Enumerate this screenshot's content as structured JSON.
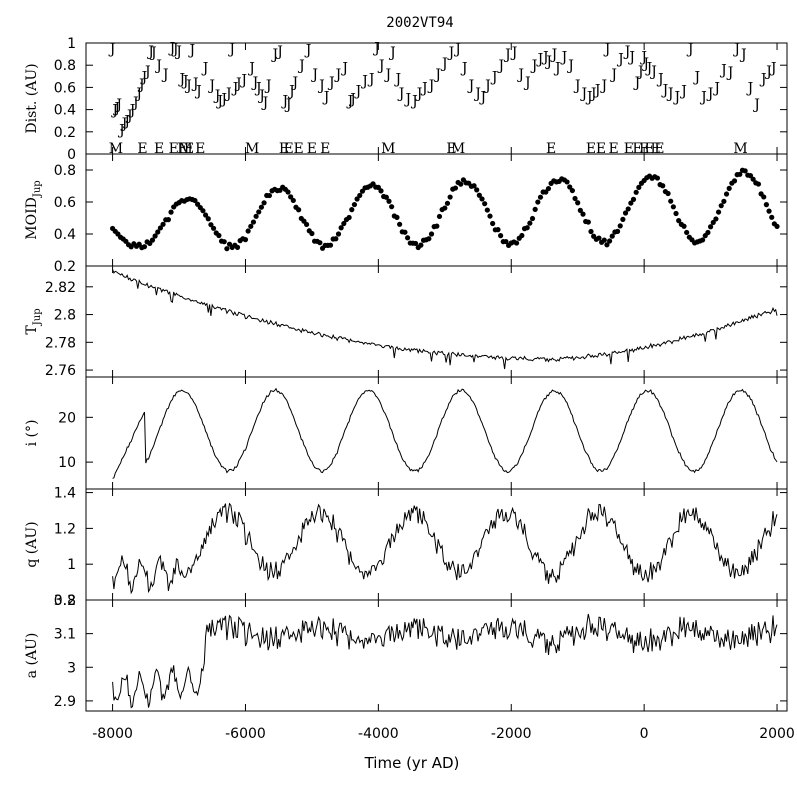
{
  "chart_data": {
    "type": "line",
    "title": "2002VT94",
    "xlabel": "Time (yr AD)",
    "xlim": [
      -8400,
      2150
    ],
    "xticks": [
      "-8000",
      "-6000",
      "-4000",
      "-2000",
      "0",
      "2000"
    ],
    "xtick_values": [
      -8000,
      -6000,
      -4000,
      -2000,
      0,
      2000
    ],
    "panels": [
      {
        "id": "dist",
        "type": "scatter",
        "ylabel": "Dist. (AU)",
        "ylim": [
          0,
          1
        ],
        "yticks": [
          "0",
          "0.2",
          "0.4",
          "0.6",
          "0.8",
          "1"
        ],
        "ytick_values": [
          0,
          0.2,
          0.4,
          0.6,
          0.8,
          1
        ],
        "series": [
          {
            "marker": "J",
            "points": [
              [
                -8000,
                0.95
              ],
              [
                -7960,
                0.4
              ],
              [
                -7930,
                0.42
              ],
              [
                -7900,
                0.45
              ],
              [
                -7860,
                0.22
              ],
              [
                -7820,
                0.28
              ],
              [
                -7780,
                0.3
              ],
              [
                -7740,
                0.35
              ],
              [
                -7700,
                0.4
              ],
              [
                -7650,
                0.47
              ],
              [
                -7600,
                0.55
              ],
              [
                -7560,
                0.63
              ],
              [
                -7520,
                0.7
              ],
              [
                -7470,
                0.75
              ],
              [
                -7420,
                0.93
              ],
              [
                -7380,
                0.92
              ],
              [
                -7300,
                0.8
              ],
              [
                -7200,
                0.72
              ],
              [
                -7100,
                0.96
              ],
              [
                -7050,
                0.95
              ],
              [
                -7000,
                0.93
              ],
              [
                -6950,
                0.68
              ],
              [
                -6900,
                0.66
              ],
              [
                -6850,
                0.62
              ],
              [
                -6800,
                0.94
              ],
              [
                -6750,
                0.64
              ],
              [
                -6700,
                0.57
              ],
              [
                -6600,
                0.78
              ],
              [
                -6500,
                0.62
              ],
              [
                -6420,
                0.53
              ],
              [
                -6380,
                0.48
              ],
              [
                -6320,
                0.5
              ],
              [
                -6250,
                0.55
              ],
              [
                -6200,
                0.95
              ],
              [
                -6150,
                0.6
              ],
              [
                -6100,
                0.64
              ],
              [
                -6020,
                0.67
              ],
              [
                -5900,
                0.78
              ],
              [
                -5850,
                0.65
              ],
              [
                -5800,
                0.6
              ],
              [
                -5750,
                0.53
              ],
              [
                -5700,
                0.47
              ],
              [
                -5650,
                0.62
              ],
              [
                -5550,
                0.9
              ],
              [
                -5480,
                0.93
              ],
              [
                -5400,
                0.48
              ],
              [
                -5350,
                0.45
              ],
              [
                -5300,
                0.57
              ],
              [
                -5250,
                0.65
              ],
              [
                -5150,
                0.8
              ],
              [
                -5050,
                0.94
              ],
              [
                -4950,
                0.72
              ],
              [
                -4850,
                0.62
              ],
              [
                -4780,
                0.52
              ],
              [
                -4700,
                0.65
              ],
              [
                -4600,
                0.72
              ],
              [
                -4500,
                0.78
              ],
              [
                -4420,
                0.48
              ],
              [
                -4380,
                0.5
              ],
              [
                -4300,
                0.57
              ],
              [
                -4200,
                0.66
              ],
              [
                -4100,
                0.68
              ],
              [
                -4020,
                0.96
              ],
              [
                -3950,
                0.8
              ],
              [
                -3850,
                0.72
              ],
              [
                -3780,
                0.92
              ],
              [
                -3700,
                0.68
              ],
              [
                -3650,
                0.55
              ],
              [
                -3550,
                0.5
              ],
              [
                -3450,
                0.48
              ],
              [
                -3380,
                0.55
              ],
              [
                -3300,
                0.6
              ],
              [
                -3200,
                0.62
              ],
              [
                -3100,
                0.72
              ],
              [
                -3000,
                0.82
              ],
              [
                -2900,
                0.92
              ],
              [
                -2800,
                0.95
              ],
              [
                -2700,
                0.78
              ],
              [
                -2600,
                0.62
              ],
              [
                -2500,
                0.55
              ],
              [
                -2420,
                0.52
              ],
              [
                -2350,
                0.62
              ],
              [
                -2250,
                0.7
              ],
              [
                -2150,
                0.8
              ],
              [
                -2050,
                0.9
              ],
              [
                -1950,
                0.92
              ],
              [
                -1850,
                0.72
              ],
              [
                -1750,
                0.65
              ],
              [
                -1650,
                0.8
              ],
              [
                -1560,
                0.86
              ],
              [
                -1480,
                0.88
              ],
              [
                -1430,
                0.84
              ],
              [
                -1350,
                0.9
              ],
              [
                -1300,
                0.78
              ],
              [
                -1200,
                0.88
              ],
              [
                -1100,
                0.8
              ],
              [
                -1000,
                0.62
              ],
              [
                -900,
                0.55
              ],
              [
                -820,
                0.52
              ],
              [
                -760,
                0.55
              ],
              [
                -700,
                0.58
              ],
              [
                -600,
                0.62
              ],
              [
                -550,
                0.95
              ],
              [
                -450,
                0.72
              ],
              [
                -350,
                0.86
              ],
              [
                -250,
                0.93
              ],
              [
                -180,
                0.88
              ],
              [
                -100,
                0.65
              ],
              [
                -50,
                0.75
              ],
              [
                0,
                0.88
              ],
              [
                30,
                0.82
              ],
              [
                80,
                0.78
              ],
              [
                150,
                0.75
              ],
              [
                250,
                0.68
              ],
              [
                320,
                0.58
              ],
              [
                400,
                0.55
              ],
              [
                500,
                0.52
              ],
              [
                600,
                0.57
              ],
              [
                700,
                0.95
              ],
              [
                800,
                0.7
              ],
              [
                900,
                0.52
              ],
              [
                1000,
                0.55
              ],
              [
                1100,
                0.6
              ],
              [
                1200,
                0.76
              ],
              [
                1300,
                0.74
              ],
              [
                1400,
                0.95
              ],
              [
                1500,
                0.9
              ],
              [
                1600,
                0.6
              ],
              [
                1700,
                0.45
              ],
              [
                1800,
                0.68
              ],
              [
                1880,
                0.75
              ],
              [
                1950,
                0.78
              ]
            ]
          },
          {
            "marker": "E",
            "points": [
              [
                -7550,
                0.05
              ],
              [
                -7300,
                0.05
              ],
              [
                -7080,
                0.05
              ],
              [
                -6950,
                0.02
              ],
              [
                -6850,
                0.02
              ],
              [
                -6680,
                0.02
              ],
              [
                -5420,
                0.0
              ],
              [
                -5350,
                0.05
              ],
              [
                -5200,
                0.05
              ],
              [
                -5000,
                0.03
              ],
              [
                -4800,
                0.03
              ],
              [
                -2900,
                0.05
              ],
              [
                -1400,
                0.02
              ],
              [
                -800,
                0.05
              ],
              [
                -650,
                0.05
              ],
              [
                -460,
                0.05
              ],
              [
                -230,
                0.05
              ],
              [
                -100,
                0.02
              ],
              [
                0,
                0.02
              ],
              [
                80,
                0.02
              ],
              [
                170,
                0.02
              ],
              [
                230,
                0.05
              ]
            ]
          },
          {
            "marker": "M",
            "points": [
              [
                -7950,
                0.02
              ],
              [
                -6900,
                0.02
              ],
              [
                -5900,
                0.05
              ],
              [
                -3850,
                0.05
              ],
              [
                -2800,
                0.02
              ],
              [
                1450,
                0.02
              ]
            ]
          }
        ]
      },
      {
        "id": "moid",
        "type": "scatter",
        "ylabel": "MOID",
        "ylabel_sub": "Jup",
        "ylim": [
          0.2,
          0.9
        ],
        "yticks": [
          "0.2",
          "0.4",
          "0.6",
          "0.8"
        ],
        "ytick_values": [
          0.2,
          0.4,
          0.6,
          0.8
        ],
        "curve": {
          "start": -8000,
          "end": 2000,
          "step": 40,
          "kind": "moid"
        }
      },
      {
        "id": "tjup",
        "type": "line",
        "ylabel": "T",
        "ylabel_sub": "Jup",
        "ylim": [
          2.755,
          2.835
        ],
        "yticks": [
          "2.76",
          "2.78",
          "2.8",
          "2.82"
        ],
        "ytick_values": [
          2.76,
          2.78,
          2.8,
          2.82
        ],
        "curve": {
          "start": -8000,
          "end": 2000,
          "step": 20,
          "kind": "tjup"
        }
      },
      {
        "id": "incl",
        "type": "line",
        "ylabel": "i (°)",
        "ylim": [
          4,
          29
        ],
        "yticks": [
          "10",
          "20"
        ],
        "ytick_values": [
          10,
          20
        ],
        "curve": {
          "start": -8000,
          "end": 2000,
          "step": 20,
          "kind": "incl"
        }
      },
      {
        "id": "q",
        "type": "line",
        "ylabel": "q (AU)",
        "ylim": [
          0.8,
          1.42
        ],
        "yticks": [
          "0.8",
          "1",
          "1.2",
          "1.4"
        ],
        "ytick_values": [
          0.8,
          1.0,
          1.2,
          1.4
        ],
        "curve": {
          "start": -8000,
          "end": 2000,
          "step": 20,
          "kind": "q"
        }
      },
      {
        "id": "a",
        "type": "line",
        "ylabel": "a (AU)",
        "ylim": [
          2.87,
          3.2
        ],
        "yticks": [
          "2.9",
          "3",
          "3.1",
          "3.2"
        ],
        "ytick_values": [
          2.9,
          3.0,
          3.1,
          3.2
        ],
        "curve": {
          "start": -8000,
          "end": 2000,
          "step": 20,
          "kind": "a"
        }
      }
    ]
  }
}
